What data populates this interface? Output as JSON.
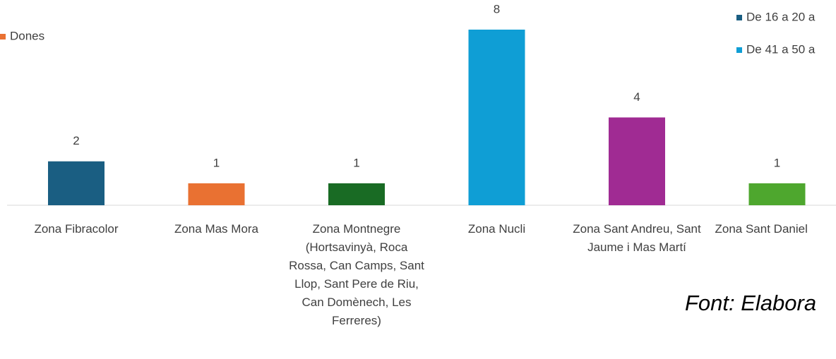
{
  "chart_data": {
    "type": "bar",
    "categories": [
      "Zona Fibracolor",
      "Zona Mas Mora",
      "Zona Montnegre (Hortsavinyà, Roca Rossa, Can Camps, Sant Llop, Sant Pere de Riu, Can Domènech, Les Ferreres)",
      "Zona Nucli",
      "Zona Sant Andreu, Sant Jaume i Mas Martí",
      "Zona Sant Daniel"
    ],
    "values": [
      2,
      1,
      1,
      8,
      4,
      1
    ],
    "colors": [
      "#1a5e82",
      "#e97132",
      "#196b24",
      "#0f9ed5",
      "#a02b93",
      "#4ea72e"
    ],
    "legend": [
      {
        "name": "Dones",
        "color": "#e97132"
      },
      {
        "name": "De 16 a 20 a",
        "color": "#1a5e82"
      },
      {
        "name": "De 41 a 50 a",
        "color": "#0f9ed5"
      }
    ],
    "source": "Font: Elabora"
  }
}
